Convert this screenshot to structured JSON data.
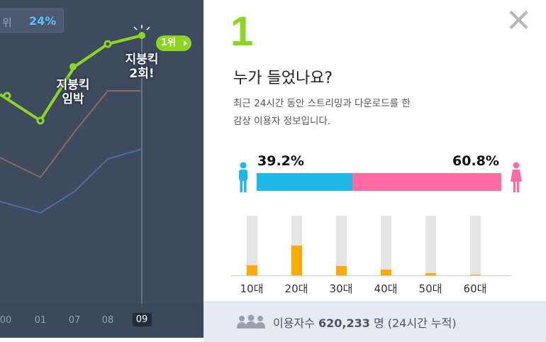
{
  "rank_pill": {
    "label": "위",
    "value": "24%"
  },
  "chart": {
    "x_labels": [
      "00",
      "01",
      "07",
      "08",
      "09"
    ],
    "active_label": "09",
    "badge": "1위",
    "annotations": [
      {
        "line1": "지붕킥",
        "line2": "임박"
      },
      {
        "line1": "지붕킥",
        "line2": "2회!"
      }
    ],
    "colors": {
      "green": "#8bd621",
      "brown": "#8b6a5c",
      "blue": "#4a6da0"
    }
  },
  "panel": {
    "rank_number": "1",
    "title": "누가 들었나요?",
    "desc_line1": "최근 24시간 동안 스트리밍과 다운로드를 한",
    "desc_line2": "감상 이용자 정보입니다."
  },
  "gender": {
    "male_pct": "39.2%",
    "female_pct": "60.8%",
    "male_value": 39.2,
    "male_color": "#1fb8e6",
    "female_color": "#ff6aa3"
  },
  "age": {
    "labels": [
      "10대",
      "20대",
      "30대",
      "40대",
      "50대",
      "60대"
    ],
    "values": [
      17,
      50,
      16,
      10,
      4,
      1
    ],
    "bar_color": "#ffaa00"
  },
  "footer": {
    "label": "이용자수",
    "count": "620,233",
    "unit": "명 (24시간 누적)"
  }
}
